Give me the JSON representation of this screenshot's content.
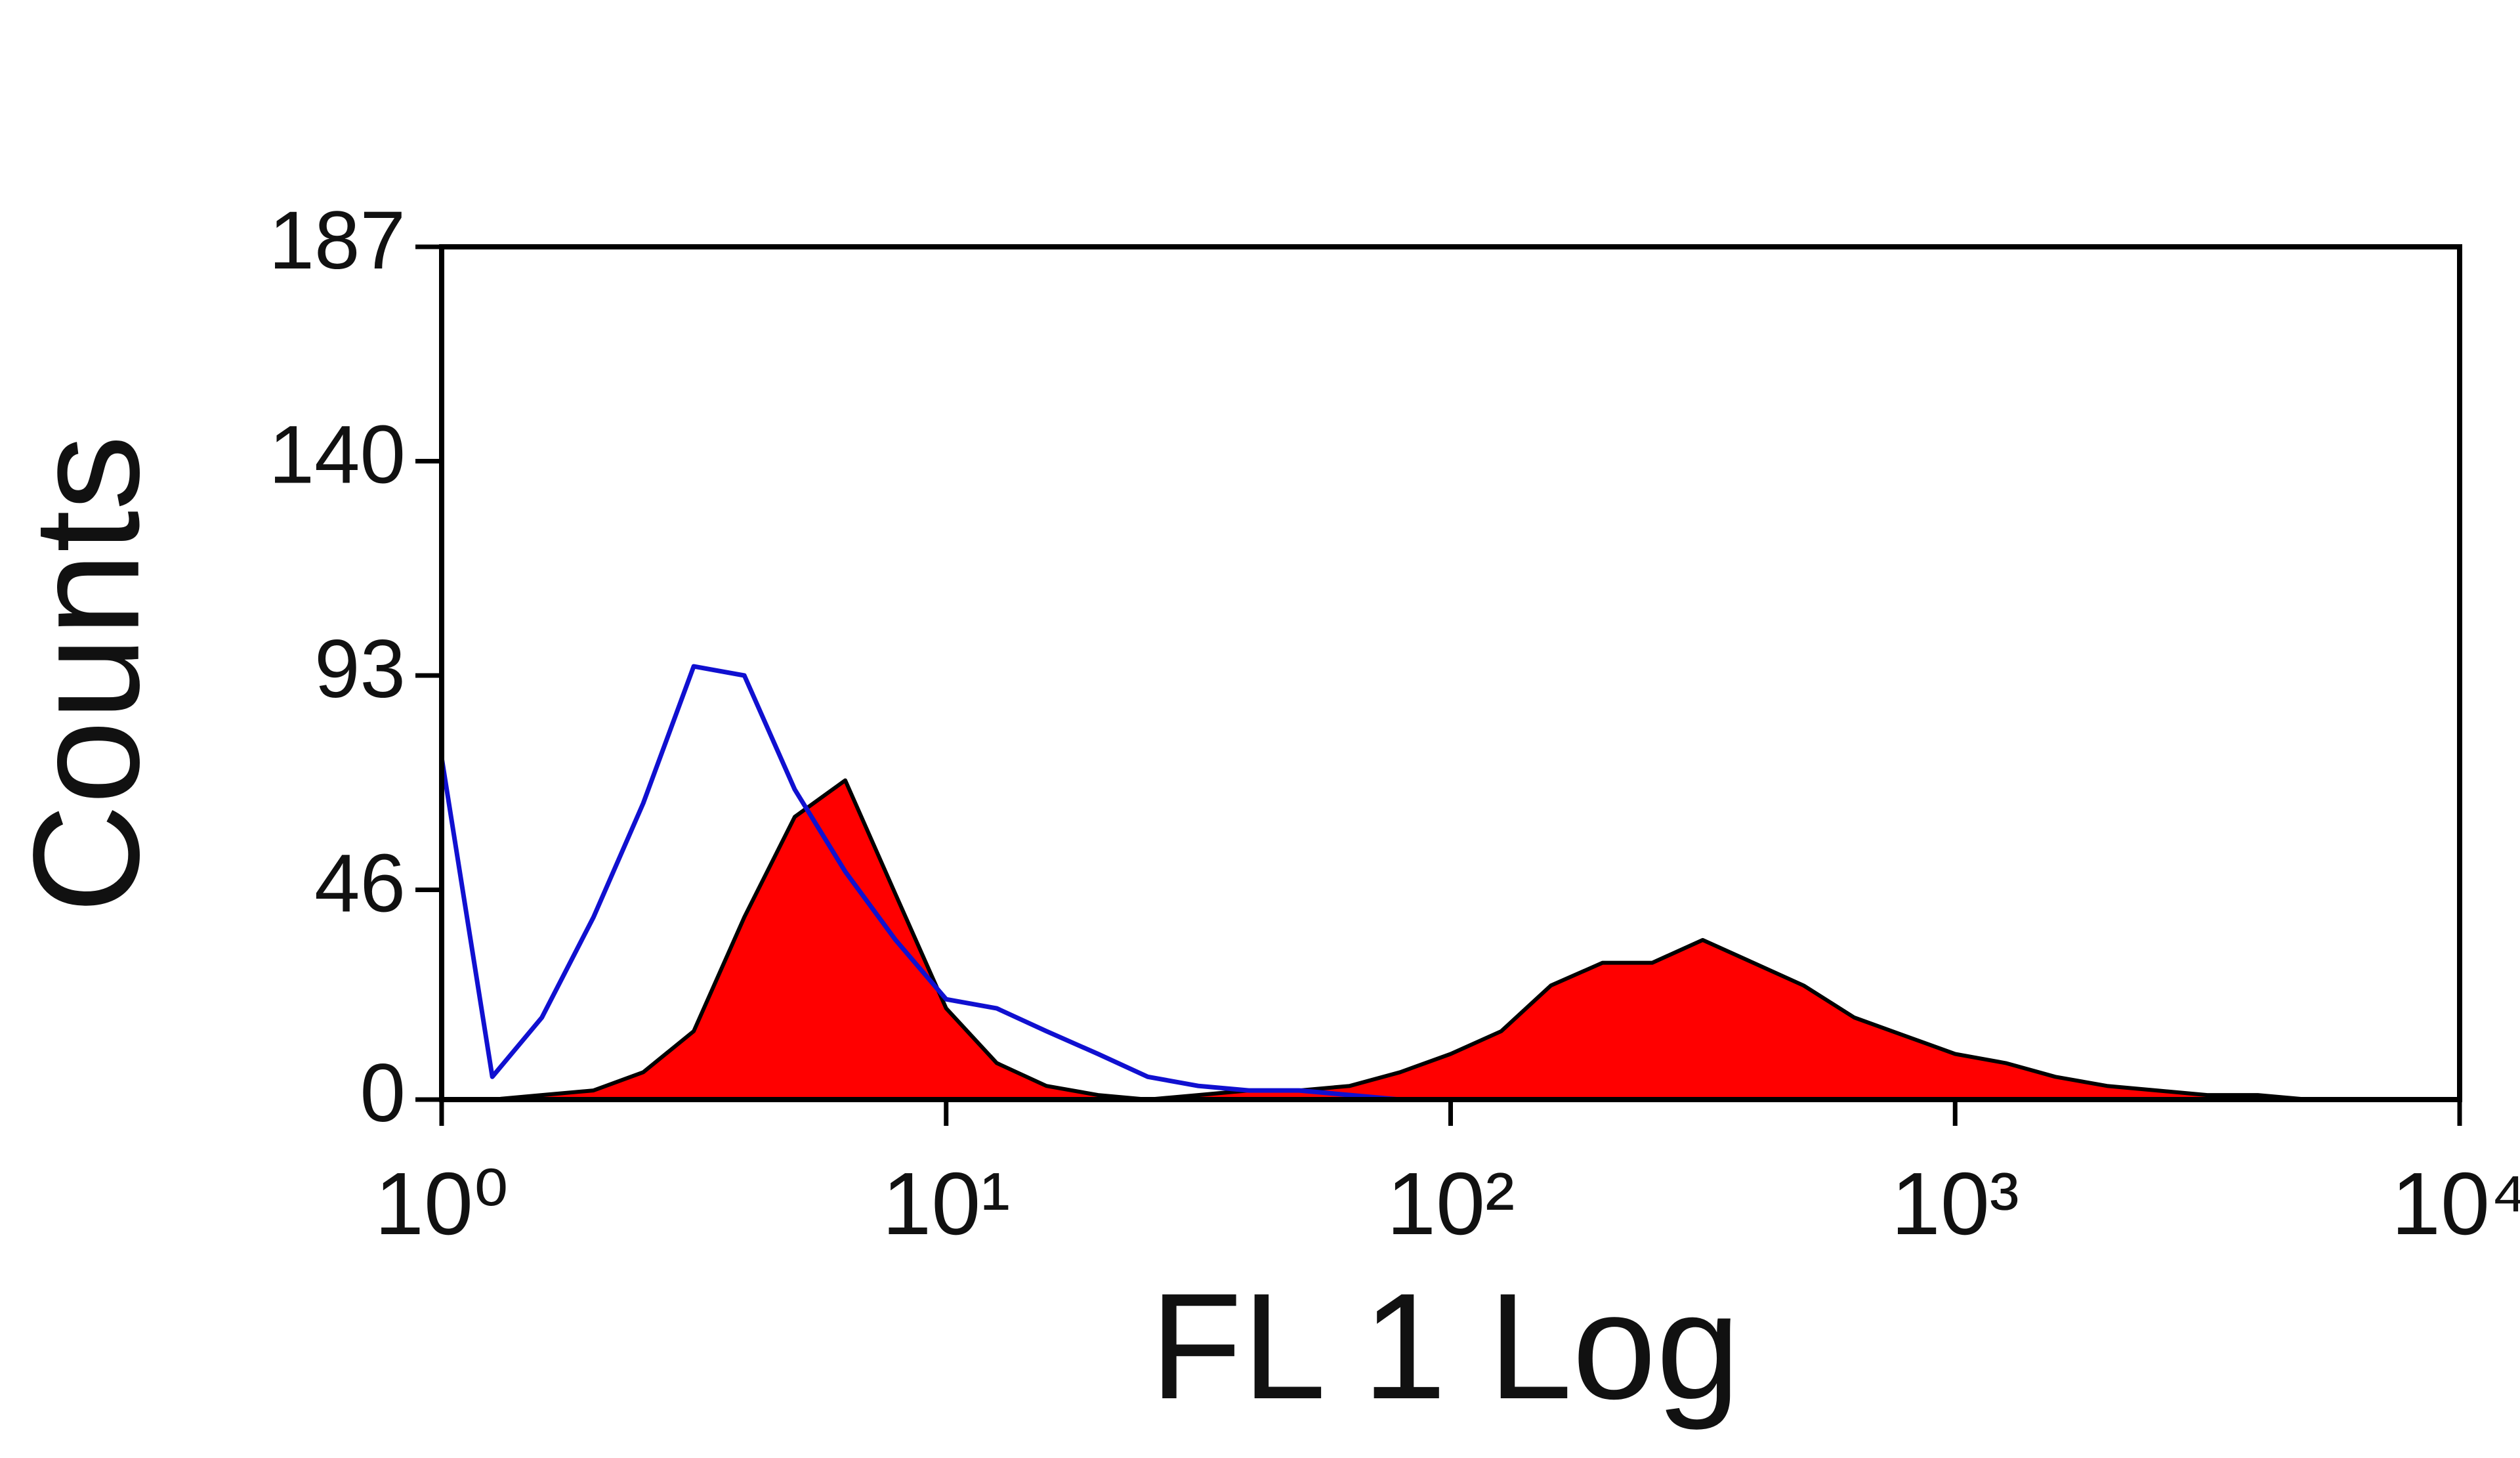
{
  "chart_data": {
    "type": "histogram-overlay",
    "x_label": "FL 1 Log",
    "y_label": "Counts",
    "xscale": "log",
    "xlim": [
      1,
      10000
    ],
    "ylim": [
      0,
      187
    ],
    "xticks": [
      {
        "value": 1,
        "label": "10⁰"
      },
      {
        "value": 10,
        "label": "10¹"
      },
      {
        "value": 100,
        "label": "10²"
      },
      {
        "value": 1000,
        "label": "10³"
      },
      {
        "value": 10000,
        "label": "10⁴"
      }
    ],
    "yticks": [
      0,
      46,
      93,
      140,
      187
    ],
    "x": [
      1,
      1.26,
      1.58,
      2,
      2.51,
      3.16,
      3.98,
      5.01,
      6.31,
      7.94,
      10,
      12.6,
      15.8,
      20,
      25.1,
      31.6,
      39.8,
      50.1,
      63.1,
      79.4,
      100,
      126,
      158,
      200,
      251,
      316,
      398,
      501,
      631,
      794,
      1000,
      1260,
      1580,
      2000,
      2510,
      3160,
      3980,
      5010,
      6310,
      7940,
      10000
    ],
    "series": [
      {
        "style": "line",
        "color": "#1010d0",
        "values": [
          75,
          5,
          18,
          40,
          65,
          95,
          93,
          68,
          50,
          35,
          22,
          20,
          15,
          10,
          5,
          3,
          2,
          2,
          1,
          0,
          0,
          null,
          null,
          null,
          null,
          null,
          null,
          null,
          null,
          null,
          null,
          null,
          null,
          null,
          null,
          null,
          null,
          null,
          null,
          null,
          null
        ]
      },
      {
        "style": "area",
        "color": "#ff0000",
        "edge_color": "#000000",
        "values": [
          0,
          0,
          1,
          2,
          6,
          15,
          40,
          62,
          70,
          45,
          20,
          8,
          3,
          1,
          0,
          1,
          2,
          2,
          3,
          6,
          10,
          15,
          25,
          30,
          30,
          35,
          30,
          25,
          18,
          14,
          10,
          8,
          5,
          3,
          2,
          1,
          1,
          0,
          0,
          0,
          0
        ]
      }
    ]
  }
}
